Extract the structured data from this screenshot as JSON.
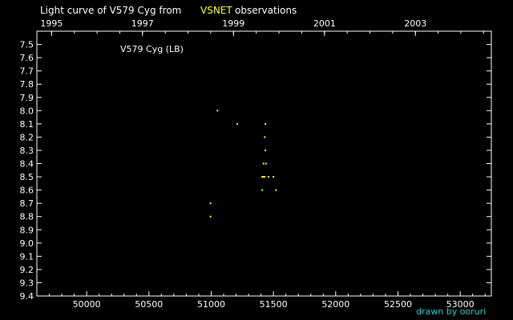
{
  "title_prefix": "Light curve of V579 Cyg from",
  "title_source": "VSNET",
  "title_suffix": "observations",
  "credit": "drawn by ooruri",
  "colors": {
    "background": "#000000",
    "axes": "#ffffff",
    "text": "#ffffff",
    "highlight": "#ffff33",
    "points": "#ffff33",
    "credit": "#33cccc"
  },
  "chart_data": {
    "type": "scatter",
    "annotation": "V579 Cyg (LB)",
    "xlim": [
      49600,
      53250
    ],
    "ylim": [
      9.4,
      7.4
    ],
    "y_inverted": true,
    "grid": false,
    "x_ticks": [
      "50000",
      "50500",
      "51000",
      "51500",
      "52000",
      "52500",
      "53000"
    ],
    "x_tick_values": [
      50000,
      50500,
      51000,
      51500,
      52000,
      52500,
      53000
    ],
    "top_ticks": [
      "1995",
      "1997",
      "1999",
      "2001",
      "2003"
    ],
    "top_tick_values": [
      49718,
      50448,
      51179,
      51910,
      52640
    ],
    "y_ticks": [
      "7.5",
      "7.6",
      "7.7",
      "7.8",
      "7.9",
      "8.0",
      "8.1",
      "8.2",
      "8.3",
      "8.4",
      "8.5",
      "8.6",
      "8.7",
      "8.8",
      "8.9",
      "9.0",
      "9.1",
      "9.2",
      "9.3",
      "9.4"
    ],
    "y_tick_values": [
      7.5,
      7.6,
      7.7,
      7.8,
      7.9,
      8.0,
      8.1,
      8.2,
      8.3,
      8.4,
      8.5,
      8.6,
      8.7,
      8.8,
      8.9,
      9.0,
      9.1,
      9.2,
      9.3,
      9.4
    ],
    "series": [
      {
        "x": [
          51050,
          51210,
          51435,
          51430,
          51435,
          51420,
          51440,
          51460,
          51500,
          51410,
          51420,
          51430,
          51410,
          50995,
          50995
        ],
        "y": [
          8.0,
          8.1,
          8.1,
          8.2,
          8.3,
          8.4,
          8.4,
          8.5,
          8.5,
          8.5,
          8.5,
          8.5,
          8.6,
          8.7,
          8.8
        ]
      },
      {
        "x": [
          51520
        ],
        "y": [
          8.6
        ]
      }
    ]
  }
}
